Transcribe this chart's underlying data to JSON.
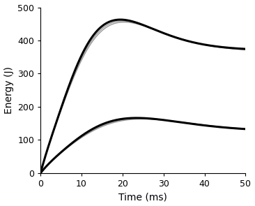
{
  "title": "",
  "xlabel": "Time (ms)",
  "ylabel": "Energy (J)",
  "xlim": [
    0,
    50
  ],
  "ylim": [
    0,
    500
  ],
  "xticks": [
    0,
    10,
    20,
    30,
    40,
    50
  ],
  "yticks": [
    0,
    100,
    200,
    300,
    400,
    500
  ],
  "background_color": "#ffffff",
  "upper_peak": 455,
  "upper_peak_t": 16.5,
  "upper_settle": 370,
  "upper_rise_k": 0.85,
  "upper_decay_k": 0.1,
  "lower_peak": 165,
  "lower_peak_t": 21.0,
  "lower_settle": 125,
  "lower_rise_k": 0.75,
  "lower_decay_k": 0.085,
  "black_lw": 2.2,
  "grey_lw": 1.0,
  "grey_color": "#999999",
  "figsize": [
    3.66,
    2.95
  ],
  "dpi": 100
}
